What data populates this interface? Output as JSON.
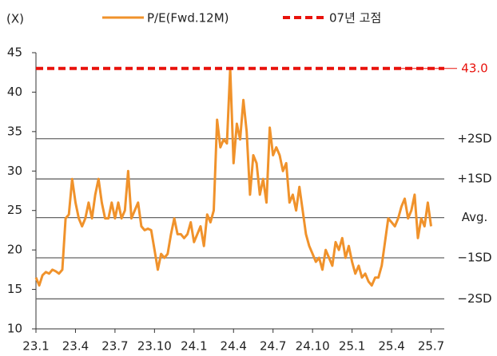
{
  "chart_data": {
    "type": "line",
    "y_label": "(X)",
    "x": [
      0,
      0.25,
      0.5,
      0.75,
      1,
      1.25,
      1.5,
      1.75,
      2,
      2.25,
      2.5,
      2.75,
      3,
      3.25,
      3.5,
      3.75,
      4,
      4.25,
      4.5,
      4.75,
      5,
      5.25,
      5.5,
      5.75,
      6,
      6.25,
      6.5,
      6.75,
      7,
      7.25,
      7.5,
      7.75,
      8,
      8.25,
      8.5,
      8.75,
      9,
      9.25,
      9.5,
      9.75,
      10,
      10.25,
      10.5,
      10.75,
      11,
      11.25,
      11.5,
      11.75,
      12,
      12.25,
      12.5,
      12.75,
      13,
      13.25,
      13.5,
      13.75,
      14,
      14.25,
      14.5,
      14.75,
      15,
      15.25,
      15.5,
      15.75,
      16,
      16.25,
      16.5,
      16.75,
      17,
      17.25,
      17.5,
      17.75,
      18,
      18.25,
      18.5,
      18.75,
      19,
      19.25,
      19.5,
      19.75,
      20,
      20.25,
      20.5,
      20.75,
      21,
      21.25,
      21.5,
      21.75,
      22,
      22.25,
      22.5,
      22.75,
      23,
      23.25,
      23.5,
      23.75,
      24,
      24.25,
      24.5,
      24.75,
      25,
      25.25,
      25.5,
      25.75,
      26,
      26.25,
      26.5,
      26.75,
      27,
      27.25,
      27.5,
      27.75,
      28,
      28.25,
      28.5,
      28.75,
      29,
      29.25,
      29.5,
      29.75,
      30
    ],
    "series": [
      {
        "name": "P/E(Fwd.12M)",
        "color": "#f0922b",
        "values": [
          16.5,
          15.5,
          16.8,
          17.2,
          17,
          17.5,
          17.3,
          17,
          17.5,
          24,
          24.5,
          29,
          26,
          24,
          23,
          24,
          26,
          24,
          27,
          29,
          26,
          24,
          24,
          26,
          24,
          26,
          24,
          25,
          30,
          24,
          25,
          26,
          23,
          22.5,
          22.7,
          22.5,
          20,
          17.5,
          19.5,
          19,
          19.5,
          22,
          24,
          22,
          22,
          21.5,
          22,
          23.5,
          21,
          22,
          23,
          20.5,
          24.5,
          23.5,
          25,
          36.5,
          33,
          34,
          33.5,
          43,
          31,
          36,
          34,
          39,
          35,
          27,
          32,
          31,
          27,
          29,
          26,
          35.5,
          32,
          33,
          32,
          30,
          31,
          26,
          27,
          25,
          28,
          25,
          22,
          20.5,
          19.5,
          18.5,
          19,
          17.5,
          20,
          19,
          18,
          21,
          20,
          21.5,
          19,
          20.5,
          18.5,
          17,
          18,
          16.5,
          17,
          16,
          15.5,
          16.5,
          16.5,
          18,
          21,
          24,
          23.5,
          23,
          24,
          25.5,
          26.5,
          24,
          25,
          27,
          21.5,
          24,
          23,
          26,
          23
        ]
      }
    ],
    "ref_line": {
      "name": "07년 고점",
      "value": 43,
      "label": "43.0",
      "color": "#e8120c"
    },
    "bands": [
      {
        "value": 34.1,
        "label": "+2SD"
      },
      {
        "value": 29,
        "label": "+1SD"
      },
      {
        "value": 24.1,
        "label": "Avg."
      },
      {
        "value": 19,
        "label": "−1SD"
      },
      {
        "value": 13.8,
        "label": "−2SD"
      }
    ],
    "xlim": [
      0,
      31
    ],
    "xticks": [
      {
        "value": 0,
        "label": "23.1"
      },
      {
        "value": 3,
        "label": "23.4"
      },
      {
        "value": 6,
        "label": "23.7"
      },
      {
        "value": 9,
        "label": "23.10"
      },
      {
        "value": 12,
        "label": "24.1"
      },
      {
        "value": 15,
        "label": "24.4"
      },
      {
        "value": 18,
        "label": "24.7"
      },
      {
        "value": 21,
        "label": "24.10"
      },
      {
        "value": 24,
        "label": "25.1"
      },
      {
        "value": 27,
        "label": "25.4"
      },
      {
        "value": 30,
        "label": "25.7"
      }
    ],
    "ylim": [
      10,
      45
    ],
    "yticks": [
      10,
      15,
      20,
      25,
      30,
      35,
      40,
      45
    ]
  }
}
